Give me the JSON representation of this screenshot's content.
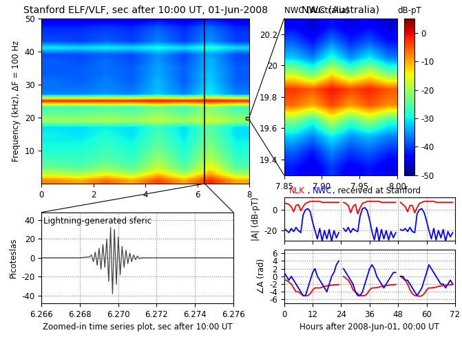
{
  "chart_data": [
    {
      "type": "heatmap",
      "title": "Stanford ELF/VLF, sec after 10:00 UT, 01-Jun-2008",
      "y_label": "Frequency (kHz), ΔF = 100 Hz",
      "x_edges": [
        0,
        1,
        2,
        3,
        4,
        5,
        6,
        7,
        8
      ],
      "y_edges": [
        0,
        2,
        4,
        6,
        8,
        10,
        12,
        14,
        16,
        18,
        20,
        22,
        24,
        26,
        28,
        30,
        32,
        34,
        36,
        38,
        40,
        42,
        44,
        46,
        48,
        50
      ],
      "cells": [
        [
          -8,
          -10,
          -6,
          -10,
          -4,
          -10,
          -2,
          -10
        ],
        [
          -18,
          -20,
          -16,
          -20,
          -12,
          -20,
          -10,
          -20
        ],
        [
          -24,
          -25,
          -22,
          -25,
          -18,
          -25,
          -15,
          -25
        ],
        [
          -26,
          -27,
          -25,
          -27,
          -20,
          -27,
          -18,
          -27
        ],
        [
          -28,
          -28,
          -26,
          -28,
          -22,
          -28,
          -20,
          -28
        ],
        [
          -29,
          -29,
          -27,
          -29,
          -24,
          -29,
          -22,
          -29
        ],
        [
          -30,
          -30,
          -28,
          -30,
          -25,
          -30,
          -23,
          -30
        ],
        [
          -30,
          -31,
          -29,
          -31,
          -26,
          -31,
          -24,
          -31
        ],
        [
          -31,
          -31,
          -30,
          -31,
          -27,
          -31,
          -25,
          -31
        ],
        [
          -20,
          -20,
          -19,
          -20,
          -18,
          -20,
          -17,
          -20
        ],
        [
          -24,
          -24,
          -23,
          -24,
          -21,
          -24,
          -20,
          -24
        ],
        [
          -27,
          -27,
          -26,
          -27,
          -24,
          -27,
          -22,
          -27
        ],
        [
          -2,
          -2,
          -2,
          -2,
          -1,
          -2,
          -1,
          -2
        ],
        [
          -36,
          -36,
          -35,
          -36,
          -32,
          -36,
          -30,
          -36
        ],
        [
          -37,
          -37,
          -36,
          -37,
          -33,
          -37,
          -31,
          -37
        ],
        [
          -37,
          -38,
          -36,
          -38,
          -33,
          -38,
          -32,
          -38
        ],
        [
          -38,
          -38,
          -37,
          -38,
          -34,
          -38,
          -32,
          -38
        ],
        [
          -38,
          -38,
          -37,
          -38,
          -34,
          -38,
          -33,
          -38
        ],
        [
          -38,
          -39,
          -37,
          -39,
          -35,
          -39,
          -33,
          -39
        ],
        [
          -39,
          -39,
          -38,
          -39,
          -35,
          -39,
          -34,
          -39
        ],
        [
          -30,
          -31,
          -30,
          -31,
          -29,
          -31,
          -28,
          -31
        ],
        [
          -39,
          -40,
          -38,
          -40,
          -36,
          -40,
          -35,
          -40
        ],
        [
          -40,
          -40,
          -39,
          -40,
          -37,
          -40,
          -36,
          -40
        ],
        [
          -41,
          -41,
          -40,
          -41,
          -38,
          -41,
          -37,
          -41
        ],
        [
          -44,
          -44,
          -43,
          -44,
          -42,
          -44,
          -41,
          -44
        ]
      ],
      "xlim": [
        0,
        8
      ],
      "ylim": [
        0,
        50
      ],
      "xticks": [
        0,
        2,
        4,
        6,
        8
      ],
      "yticks": [
        10,
        20,
        30,
        40,
        50
      ],
      "colorbar_range": [
        -50,
        5
      ]
    },
    {
      "type": "heatmap",
      "title": "NWC (Australia)",
      "x_edges": [
        7.85,
        7.875,
        7.9,
        7.925,
        7.95,
        7.975,
        8.0
      ],
      "y_edges": [
        19.3,
        19.4,
        19.5,
        19.6,
        19.7,
        19.8,
        19.9,
        20.0,
        20.1,
        20.2,
        20.3
      ],
      "cells": [
        [
          -42,
          -45,
          -40,
          -44,
          -42,
          -45
        ],
        [
          -38,
          -42,
          -36,
          -40,
          -38,
          -41
        ],
        [
          -32,
          -36,
          -30,
          -35,
          -33,
          -36
        ],
        [
          -22,
          -28,
          -18,
          -26,
          -20,
          -27
        ],
        [
          -6,
          -10,
          -4,
          -9,
          -5,
          -8
        ],
        [
          -3,
          -5,
          -1,
          -4,
          -2,
          -5
        ],
        [
          -18,
          -24,
          -14,
          -22,
          -16,
          -23
        ],
        [
          -32,
          -36,
          -28,
          -35,
          -30,
          -36
        ],
        [
          -38,
          -42,
          -36,
          -41,
          -38,
          -42
        ],
        [
          -43,
          -46,
          -42,
          -45,
          -43,
          -46
        ]
      ],
      "xlim": [
        7.85,
        8.0
      ],
      "ylim": [
        19.3,
        20.3
      ],
      "xticks": [
        7.85,
        {
          "value": 7.9,
          "label": "7.90"
        },
        7.95,
        {
          "value": 8.0,
          "label": "8.00"
        }
      ],
      "yticks": [
        19.4,
        19.6,
        19.8,
        20,
        20.2
      ],
      "colorbar_range": [
        -50,
        5
      ],
      "colorbar_ticks": [
        0,
        -10,
        -20,
        -30,
        -40,
        -50
      ],
      "colorbar_label": "dB-pT"
    },
    {
      "type": "line",
      "annotation": "Lightning-generated sferic",
      "x_label": "Zoomed-in time series plot, sec after 10:00 UT",
      "y_label": "Picoteslas",
      "x": [
        6.266,
        6.268,
        6.2685,
        6.2686,
        6.2687,
        6.2688,
        6.2689,
        6.269,
        6.2691,
        6.2692,
        6.2693,
        6.2694,
        6.2695,
        6.2696,
        6.2697,
        6.2698,
        6.2699,
        6.27,
        6.2701,
        6.2702,
        6.2703,
        6.2704,
        6.2705,
        6.2706,
        6.2707,
        6.2708,
        6.2709,
        6.271,
        6.2711,
        6.2712,
        6.272,
        6.276
      ],
      "values": [
        0,
        0,
        1,
        3,
        -4,
        6,
        -8,
        10,
        -12,
        14,
        -10,
        20,
        -25,
        32,
        -38,
        30,
        -28,
        22,
        -18,
        12,
        -10,
        8,
        -6,
        5,
        -4,
        3,
        -2,
        2,
        -1,
        0,
        0,
        0
      ],
      "color": "#404040",
      "xlim": [
        6.266,
        6.276
      ],
      "ylim": [
        -48,
        48
      ],
      "xticks": [
        6.266,
        6.268,
        {
          "value": 6.27,
          "label": "6.270"
        },
        6.272,
        6.274,
        6.276
      ],
      "yticks": [
        -40,
        -20,
        0,
        20,
        40
      ],
      "grid": true
    },
    {
      "type": "line",
      "title_parts": [
        "NLK",
        " , ",
        "NWC",
        ", received at Stanford"
      ],
      "y_label": "|A| (dB-pT)",
      "tick_labels": "y",
      "x": [
        0,
        1,
        2,
        3,
        4,
        5,
        6,
        7,
        8,
        9,
        10,
        11,
        12,
        13,
        14,
        15,
        16,
        17,
        18,
        19,
        20,
        21,
        22,
        23,
        24,
        25,
        26,
        27,
        28,
        29,
        30,
        31,
        32,
        33,
        34,
        35,
        36,
        37,
        38,
        39,
        40,
        41,
        42,
        43,
        44,
        45,
        46,
        47,
        48,
        49,
        50,
        51,
        52,
        53,
        54,
        55,
        56,
        57,
        58,
        59,
        60,
        61,
        62,
        63,
        64,
        65,
        66,
        67,
        68,
        69,
        70,
        71
      ],
      "series": [
        {
          "name": "NLK",
          "color": "#ff0000",
          "values": [
            6,
            6,
            5,
            3,
            -2,
            4,
            5,
            -1,
            3,
            6,
            7,
            8,
            8,
            8,
            8,
            8,
            7,
            7,
            7,
            7,
            7,
            7,
            7,
            7,
            null,
            7,
            6,
            4,
            -3,
            3,
            5,
            -4,
            2,
            6,
            7,
            8,
            8,
            8,
            8,
            8,
            8,
            7,
            7,
            7,
            7,
            7,
            7,
            7,
            null,
            7,
            5,
            3,
            -2,
            4,
            4,
            -3,
            2,
            6,
            7,
            8,
            8,
            8,
            8,
            8,
            7,
            7,
            7,
            7,
            7,
            7,
            7,
            7
          ]
        },
        {
          "name": "NWC",
          "color": "#0000ff",
          "values": [
            -18,
            -20,
            -22,
            -18,
            -21,
            -17,
            -20,
            -22,
            -5,
            0,
            1,
            -2,
            -12,
            -20,
            -28,
            -18,
            -30,
            -20,
            -28,
            -19,
            -30,
            -20,
            -27,
            -22,
            null,
            -18,
            -21,
            -17,
            -22,
            -18,
            -20,
            -21,
            -6,
            1,
            2,
            -1,
            -10,
            -21,
            -29,
            -17,
            -30,
            -19,
            -28,
            -20,
            -29,
            -21,
            -27,
            -22,
            null,
            -19,
            -20,
            -18,
            -21,
            -17,
            -21,
            -22,
            -4,
            0,
            1,
            -3,
            -11,
            -20,
            -28,
            -18,
            -29,
            -20,
            -27,
            -19,
            -30,
            -21,
            -26,
            -22
          ]
        }
      ],
      "xlim": [
        0,
        72
      ],
      "xticks": [
        0,
        12,
        24,
        36,
        48,
        60,
        72
      ],
      "ylim": [
        -30,
        12
      ],
      "yticks": [
        -20,
        0
      ],
      "grid": true
    },
    {
      "type": "line",
      "x_label": "Hours after 2008-Jun-01, 00:00 UT",
      "y_label": "∠A (rad)",
      "x": [
        0,
        1,
        2,
        3,
        4,
        5,
        6,
        7,
        8,
        9,
        10,
        11,
        12,
        13,
        14,
        15,
        16,
        17,
        18,
        19,
        20,
        21,
        22,
        23,
        24,
        25,
        26,
        27,
        28,
        29,
        30,
        31,
        32,
        33,
        34,
        35,
        36,
        37,
        38,
        39,
        40,
        41,
        42,
        43,
        44,
        45,
        46,
        47,
        48,
        49,
        50,
        51,
        52,
        53,
        54,
        55,
        56,
        57,
        58,
        59,
        60,
        61,
        62,
        63,
        64,
        65,
        66,
        67,
        68,
        69,
        70,
        71
      ],
      "series": [
        {
          "name": "NLK",
          "color": "#ff0000",
          "values": [
            -1,
            -1,
            -1.5,
            -2,
            -3,
            -4,
            -4,
            -4.5,
            -5,
            -5,
            -5,
            -4.5,
            -3.5,
            -3,
            -3,
            -3,
            -2.8,
            -2.6,
            -2.5,
            -2.4,
            -2.3,
            -2.2,
            -2.2,
            -2.1,
            null,
            0,
            -0.5,
            -1,
            -2,
            -3.5,
            -4,
            -4.5,
            -5,
            -5,
            -5,
            -4.5,
            -3.5,
            -3,
            -3,
            -2.9,
            -2.8,
            -2.6,
            -2.5,
            -2.4,
            -2.3,
            -2.2,
            -2.2,
            -2.1,
            null,
            0,
            -0.5,
            -1,
            -2,
            -3.5,
            -4.5,
            -5,
            -5,
            -5.2,
            -5,
            -4.5,
            -3.5,
            -3,
            -3,
            -2.9,
            -2.8,
            -2.6,
            -2.5,
            -2.4,
            -2.3,
            -2.2,
            -2.2,
            -2.1
          ]
        },
        {
          "name": "NWC",
          "color": "#0000ff",
          "values": [
            1,
            0,
            -1,
            0,
            -1,
            -2,
            -3,
            -4,
            -5,
            -5,
            -3,
            -1,
            1,
            2,
            0,
            -1,
            -2,
            -3,
            -4,
            -2,
            0,
            1,
            3,
            4,
            null,
            2,
            1,
            0,
            -1,
            -2,
            -4,
            -5,
            -5,
            -4,
            -2,
            0,
            2,
            3,
            2,
            0,
            -1,
            -2,
            -3,
            -2,
            -1,
            0,
            1,
            1,
            null,
            0,
            0,
            -1,
            -1,
            -2,
            -3,
            -4,
            -5,
            -4,
            -3,
            -1,
            1,
            3,
            2,
            1,
            0,
            -1,
            -2,
            -2,
            -3,
            -2,
            -1,
            -2
          ]
        }
      ],
      "xlim": [
        0,
        72
      ],
      "xticks": [
        0,
        12,
        24,
        36,
        48,
        60,
        72
      ],
      "ylim": [
        -7,
        7
      ],
      "yticks": [
        -6,
        -4,
        -2,
        0,
        2,
        4,
        6
      ],
      "grid": true
    }
  ]
}
